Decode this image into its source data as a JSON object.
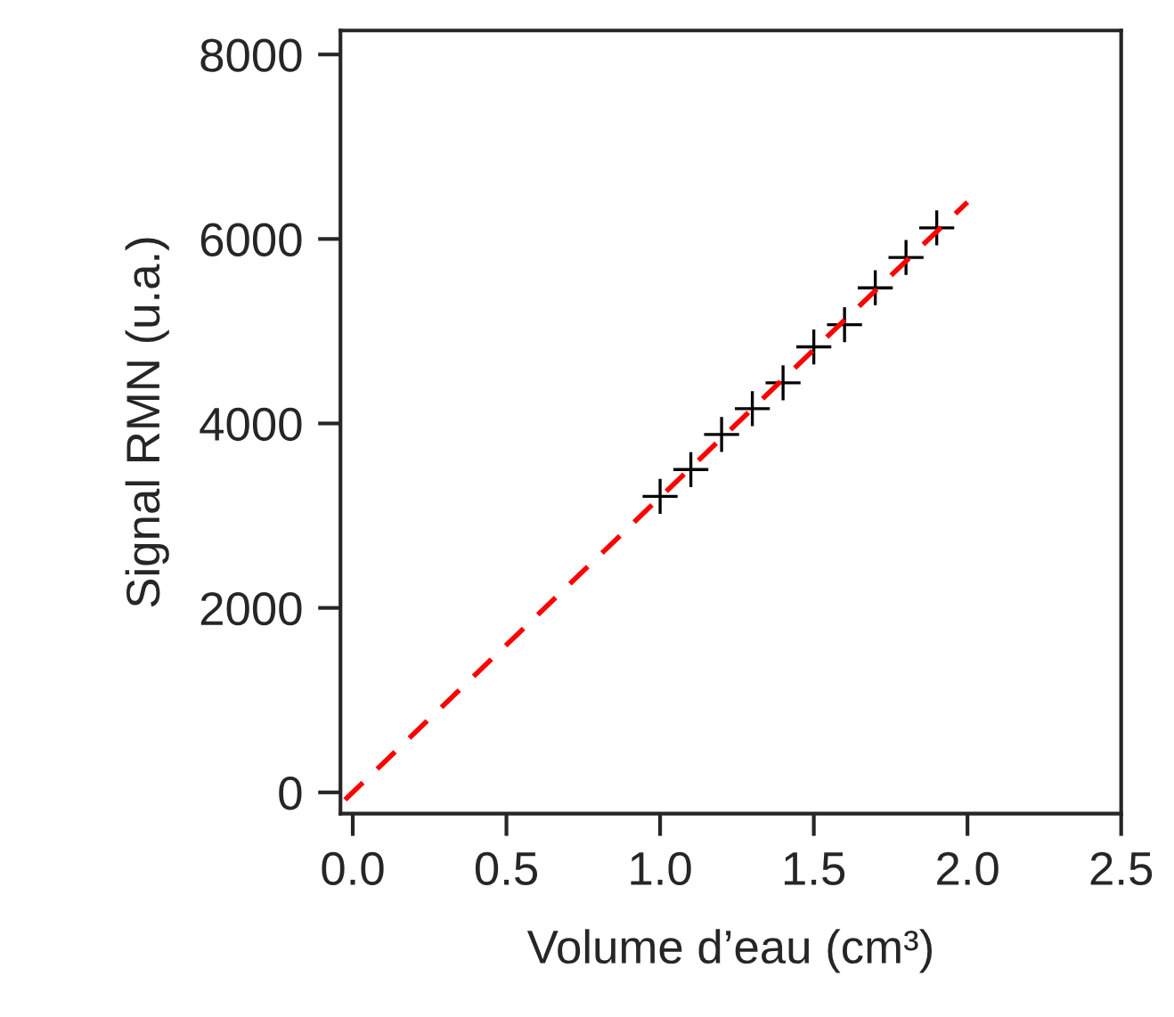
{
  "chart_data": {
    "type": "scatter",
    "xlabel": "Volume d’eau (cm³)",
    "ylabel": "Signal RMN (u.a.)",
    "xlim": [
      -0.04,
      2.5
    ],
    "ylim": [
      -230,
      8260
    ],
    "xticks": [
      {
        "value": 0,
        "label": "0.0"
      },
      0.5,
      {
        "value": 1,
        "label": "1.0"
      },
      1.5,
      {
        "value": 2,
        "label": "2.0"
      },
      2.5
    ],
    "yticks": [
      0,
      2000,
      4000,
      6000,
      8000
    ],
    "grid": false,
    "legend": false,
    "series": [
      {
        "color": "#000000",
        "marker": "cross",
        "x": [
          1.0,
          1.1,
          1.2,
          1.3,
          1.4,
          1.5,
          1.6,
          1.7,
          1.8,
          1.9
        ],
        "values": [
          3210,
          3500,
          3880,
          4160,
          4440,
          4830,
          5070,
          5470,
          5800,
          6120
        ]
      },
      {
        "type": "line",
        "color": "#ff0000",
        "line_style": "dashed",
        "marker": "none",
        "x": [
          -0.025,
          2.0
        ],
        "values": [
          -80,
          6400
        ]
      }
    ]
  }
}
